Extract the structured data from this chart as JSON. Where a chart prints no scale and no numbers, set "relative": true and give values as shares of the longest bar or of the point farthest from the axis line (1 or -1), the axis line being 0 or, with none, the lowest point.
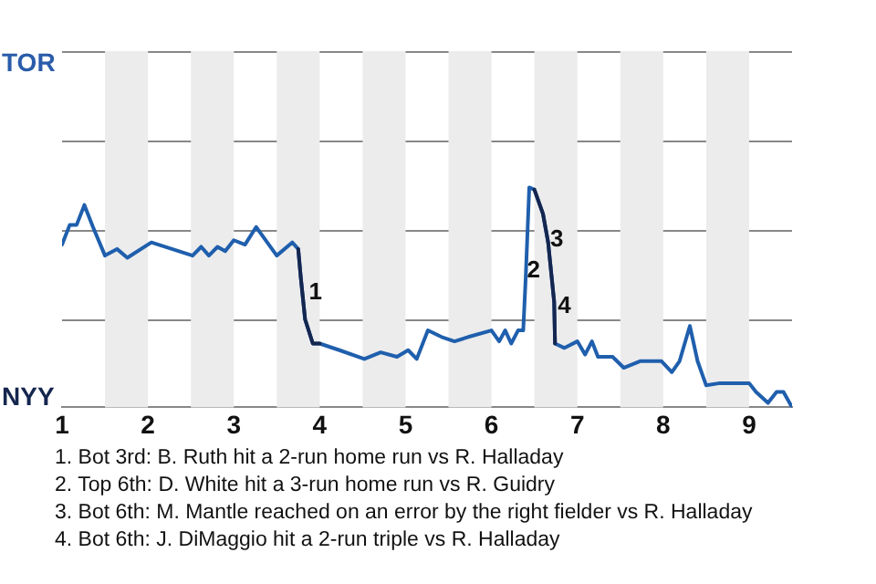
{
  "chart_data": {
    "type": "line",
    "relative": true,
    "x": [
      1.0,
      1.09,
      1.17,
      1.26,
      1.36,
      1.5,
      1.64,
      1.76,
      2.04,
      2.52,
      2.62,
      2.71,
      2.81,
      2.9,
      3.0,
      3.13,
      3.26,
      3.5,
      3.68,
      3.75,
      3.78,
      3.83,
      3.92,
      4.0,
      4.23,
      4.52,
      4.71,
      4.9,
      5.03,
      5.13,
      5.26,
      5.42,
      5.57,
      5.73,
      6.0,
      6.09,
      6.16,
      6.23,
      6.31,
      6.37,
      6.4,
      6.44,
      6.5,
      6.6,
      6.66,
      6.73,
      6.74,
      6.85,
      7.0,
      7.09,
      7.17,
      7.24,
      7.41,
      7.54,
      7.73,
      7.98,
      8.1,
      8.19,
      8.31,
      8.4,
      8.5,
      8.66,
      9.0,
      9.08,
      9.22,
      9.32,
      9.4,
      9.5
    ],
    "series": [
      {
        "color": "#1f5fad",
        "values": [
          0.74,
          0.83,
          0.83,
          0.92,
          0.82,
          0.69,
          0.72,
          0.68,
          0.75,
          0.69,
          0.73,
          0.69,
          0.73,
          0.71,
          0.76,
          0.74,
          0.82,
          0.69,
          0.75,
          0.72,
          0.59,
          0.4,
          0.29,
          0.29,
          0.26,
          0.22,
          0.25,
          0.23,
          0.26,
          0.22,
          0.35,
          0.32,
          0.3,
          0.32,
          0.35,
          0.3,
          0.35,
          0.29,
          0.35,
          0.35,
          0.6,
          1,
          0.99,
          0.88,
          0.75,
          0.48,
          0.29,
          0.27,
          0.3,
          0.24,
          0.3,
          0.23,
          0.23,
          0.18,
          0.21,
          0.21,
          0.16,
          0.21,
          0.37,
          0.21,
          0.1,
          0.11,
          0.11,
          0.07,
          0.02,
          0.07,
          0.07,
          0
        ]
      },
      {
        "color": "#15264f",
        "values": [
          null,
          null,
          null,
          null,
          null,
          null,
          null,
          null,
          null,
          null,
          null,
          null,
          null,
          null,
          null,
          null,
          null,
          null,
          null,
          0.72,
          0.59,
          0.4,
          0.29,
          0.29,
          null,
          null,
          null,
          null,
          null,
          null,
          null,
          null,
          null,
          null,
          null,
          null,
          null,
          null,
          null,
          null,
          null,
          null,
          0.99,
          0.88,
          0.75,
          0.48,
          0.29,
          null,
          null,
          null,
          null,
          null,
          null,
          null,
          null,
          null,
          null,
          null,
          null,
          null,
          null,
          null,
          null,
          null,
          null,
          null,
          null,
          null
        ]
      }
    ],
    "xlim": [
      1,
      9.5
    ],
    "xticks": [
      1,
      2,
      3,
      4,
      5,
      6,
      7,
      8,
      9
    ],
    "bands": [
      {
        "axis": "x",
        "from": 1.5,
        "to": 2,
        "color": "#ececec"
      },
      {
        "axis": "x",
        "from": 2.5,
        "to": 3,
        "color": "#ececec"
      },
      {
        "axis": "x",
        "from": 3.5,
        "to": 4,
        "color": "#ececec"
      },
      {
        "axis": "x",
        "from": 4.5,
        "to": 5,
        "color": "#ececec"
      },
      {
        "axis": "x",
        "from": 5.5,
        "to": 6,
        "color": "#ececec"
      },
      {
        "axis": "x",
        "from": 6.5,
        "to": 7,
        "color": "#ececec"
      },
      {
        "axis": "x",
        "from": 7.5,
        "to": 8,
        "color": "#ececec"
      },
      {
        "axis": "x",
        "from": 8.5,
        "to": 9,
        "color": "#ececec"
      }
    ],
    "annotations": [
      "TOR",
      "NYY",
      {
        "text": "1",
        "x": 3.95,
        "y": 0.52
      },
      {
        "text": "2",
        "x": 6.49,
        "y": 0.62
      },
      {
        "text": "3",
        "x": 6.76,
        "y": 0.76
      },
      {
        "text": "4",
        "x": 6.85,
        "y": 0.46
      },
      "1. Bot 3rd: B. Ruth hit a 2-run home run vs R. Halladay",
      "2. Top 6th: D. White hit a 3-run home run vs R. Guidry",
      "3. Bot 6th: M. Mantle reached on an error by the right fielder vs R. Halladay",
      "4. Bot 6th: J. DiMaggio hit a 2-run triple vs R. Halladay"
    ],
    "ref_lines": [
      {
        "axis": "y",
        "value": 0.4,
        "color": "#888888"
      },
      {
        "axis": "y",
        "value": 0.81,
        "color": "#888888"
      },
      {
        "axis": "y",
        "value": 1.21,
        "color": "#888888"
      },
      {
        "axis": "y",
        "value": 1.62,
        "color": "#888888"
      }
    ],
    "legend": false,
    "marker": "none",
    "line_style": "solid"
  }
}
